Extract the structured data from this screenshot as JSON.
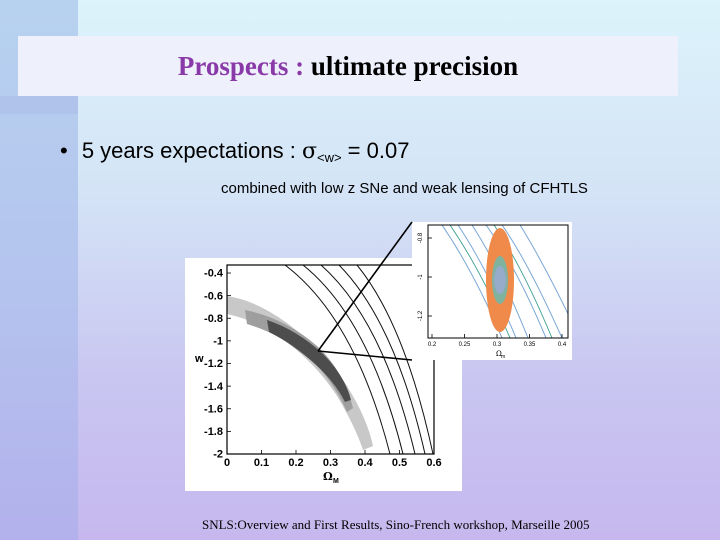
{
  "slide": {
    "title_part1": "Prospects : ",
    "title_part2": "ultimate precision",
    "bullet_symbol": "•",
    "bullet_text": "5 years expectations : ",
    "bullet_sigma": "σ",
    "bullet_subscript": "<w>",
    "bullet_value": " = 0.07",
    "subline": "combined with low z SNe and weak lensing of CFHTLS",
    "footer": "SNLS:Overview and First Results, Sino-French workshop, Marseille 2005"
  },
  "main_plot": {
    "xlabel": "Ω",
    "xlabel_sub": "M",
    "ylabel": "w",
    "x_ticks": [
      "0",
      "0.1",
      "0.2",
      "0.3",
      "0.4",
      "0.5",
      "0.6"
    ],
    "y_ticks": [
      "-0.4",
      "-0.6",
      "-0.8",
      "-1",
      "-1.2",
      "-1.4",
      "-1.6",
      "-1.8",
      "-2"
    ]
  },
  "inset_plot": {
    "xlabel": "Ω",
    "xlabel_sub": "m",
    "x_ticks": [
      "0.2",
      "0.25",
      "0.3",
      "0.35",
      "0.4"
    ],
    "y_ticks": [
      "-0.8",
      "-1",
      "-1.2"
    ]
  }
}
